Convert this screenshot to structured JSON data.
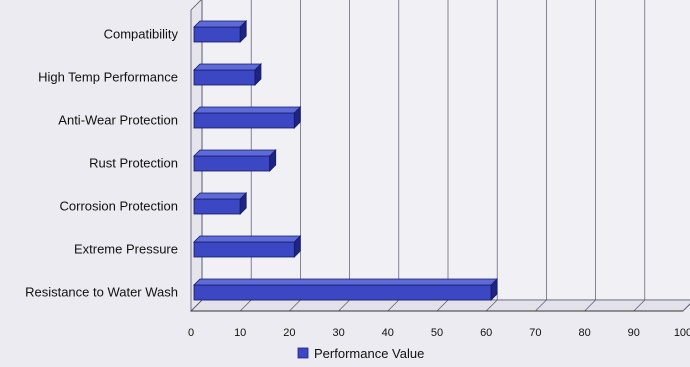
{
  "chart_data": {
    "type": "bar",
    "orientation": "horizontal",
    "style": "3d",
    "categories": [
      "Compatibility",
      "High Temp Performance",
      "Anti-Wear Protection",
      "Rust Protection",
      "Corrosion Protection",
      "Extreme Pressure",
      "Resistance to Water Wash"
    ],
    "series": [
      {
        "name": "Performance Value",
        "values": [
          10,
          13,
          21,
          16,
          10,
          21,
          61
        ]
      }
    ],
    "xlim": [
      0,
      100
    ],
    "xticks": [
      "0",
      "10",
      "20",
      "30",
      "40",
      "50",
      "60",
      "70",
      "80",
      "90",
      "100"
    ],
    "grid": true,
    "legend_position": "bottom",
    "colors": {
      "bar_front": "#3c47c4",
      "bar_top": "#5e6ad8",
      "bar_side": "#1e2480",
      "grid": "#55556a",
      "legend_swatch": "#3c47c4"
    }
  }
}
